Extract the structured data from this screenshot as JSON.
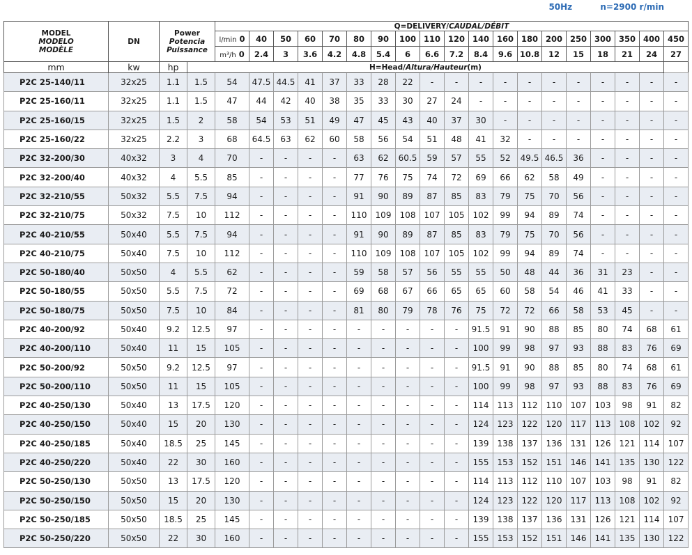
{
  "header": {
    "frequency": "50Hz",
    "speed": "n=2900 r/min"
  },
  "table": {
    "model_header": [
      "MODEL",
      "MODELO",
      "MODÈLE"
    ],
    "dn_header": "DN",
    "power_header": [
      "Power",
      "Potencia",
      "Puissance"
    ],
    "delivery_label": [
      "Q=DELIVERY/",
      "CAUDAL/DÉBIT"
    ],
    "lmin_label": "l/min",
    "lmin_zero": "0",
    "m3h_label": "m³/h",
    "m3h_zero": "0",
    "flow_lmin": [
      40,
      50,
      60,
      70,
      80,
      90,
      100,
      110,
      120,
      140,
      160,
      180,
      200,
      250,
      300,
      350,
      400,
      450
    ],
    "flow_m3h": [
      2.4,
      3,
      3.6,
      4.2,
      4.8,
      5.4,
      6,
      6.6,
      7.2,
      8.4,
      9.6,
      10.8,
      12,
      15,
      18,
      21,
      24,
      27
    ],
    "units": [
      "mm",
      "kw",
      "hp"
    ],
    "head_label": [
      "H=Head/",
      "Altura/Hauteur",
      "(m)"
    ],
    "groups": [
      [
        [
          "P2C 25-140/11",
          "32x25",
          1.1,
          1.5,
          54,
          47.5,
          44.5,
          41,
          37,
          33,
          28,
          22,
          "-",
          "-",
          "-",
          "-",
          "-",
          "-",
          "-",
          "-",
          "-",
          "-",
          "-"
        ],
        [
          "P2C 25-160/11",
          "32x25",
          1.1,
          1.5,
          47,
          44,
          42,
          40,
          38,
          35,
          33,
          30,
          27,
          24,
          "-",
          "-",
          "-",
          "-",
          "-",
          "-",
          "-",
          "-",
          "-"
        ],
        [
          "P2C 25-160/15",
          "32x25",
          1.5,
          2,
          58,
          54,
          53,
          51,
          49,
          47,
          45,
          43,
          40,
          37,
          30,
          "-",
          "-",
          "-",
          "-",
          "-",
          "-",
          "-",
          "-"
        ],
        [
          "P2C 25-160/22",
          "32x25",
          2.2,
          3,
          68,
          64.5,
          63,
          62,
          60,
          58,
          56,
          54,
          51,
          48,
          41,
          32,
          "-",
          "-",
          "-",
          "-",
          "-",
          "-",
          "-"
        ]
      ],
      [
        [
          "P2C 32-200/30",
          "40x32",
          3,
          4,
          70,
          "-",
          "-",
          "-",
          "-",
          63,
          62,
          60.5,
          59,
          57,
          55,
          52,
          49.5,
          46.5,
          36,
          "-",
          "-",
          "-",
          "-"
        ],
        [
          "P2C 32-200/40",
          "40x32",
          4,
          5.5,
          85,
          "-",
          "-",
          "-",
          "-",
          77,
          76,
          75,
          74,
          72,
          69,
          66,
          62,
          58,
          49,
          "-",
          "-",
          "-",
          "-"
        ],
        [
          "P2C 32-210/55",
          "50x32",
          5.5,
          7.5,
          94,
          "-",
          "-",
          "-",
          "-",
          91,
          90,
          89,
          87,
          85,
          83,
          79,
          75,
          70,
          56,
          "-",
          "-",
          "-",
          "-"
        ],
        [
          "P2C 32-210/75",
          "50x32",
          7.5,
          10,
          112,
          "-",
          "-",
          "-",
          "-",
          110,
          109,
          108,
          107,
          105,
          102,
          99,
          94,
          89,
          74,
          "-",
          "-",
          "-",
          "-"
        ]
      ],
      [
        [
          "P2C 40-210/55",
          "50x40",
          5.5,
          7.5,
          94,
          "-",
          "-",
          "-",
          "-",
          91,
          90,
          89,
          87,
          85,
          83,
          79,
          75,
          70,
          56,
          "-",
          "-",
          "-",
          "-"
        ],
        [
          "P2C 40-210/75",
          "50x40",
          7.5,
          10,
          112,
          "-",
          "-",
          "-",
          "-",
          110,
          109,
          108,
          107,
          105,
          102,
          99,
          94,
          89,
          74,
          "-",
          "-",
          "-",
          "-"
        ]
      ],
      [
        [
          "P2C 50-180/40",
          "50x50",
          4,
          5.5,
          62,
          "-",
          "-",
          "-",
          "-",
          59,
          58,
          57,
          56,
          55,
          55,
          50,
          48,
          44,
          36,
          31,
          23,
          "-",
          "-"
        ],
        [
          "P2C 50-180/55",
          "50x50",
          5.5,
          7.5,
          72,
          "-",
          "-",
          "-",
          "-",
          69,
          68,
          67,
          66,
          65,
          65,
          60,
          58,
          54,
          46,
          41,
          33,
          "-",
          "-"
        ],
        [
          "P2C 50-180/75",
          "50x50",
          7.5,
          10,
          84,
          "-",
          "-",
          "-",
          "-",
          81,
          80,
          79,
          78,
          76,
          75,
          72,
          72,
          66,
          58,
          53,
          45,
          "-",
          "-"
        ]
      ],
      [
        [
          "P2C 40-200/92",
          "50x40",
          9.2,
          12.5,
          97,
          "-",
          "-",
          "-",
          "-",
          "-",
          "-",
          "-",
          "-",
          "-",
          91.5,
          91,
          90,
          88,
          85,
          80,
          74,
          68,
          61
        ],
        [
          "P2C 40-200/110",
          "50x40",
          11,
          15,
          105,
          "-",
          "-",
          "-",
          "-",
          "-",
          "-",
          "-",
          "-",
          "-",
          100,
          99,
          98,
          97,
          93,
          88,
          83,
          76,
          69
        ]
      ],
      [
        [
          "P2C 50-200/92",
          "50x50",
          9.2,
          12.5,
          97,
          "-",
          "-",
          "-",
          "-",
          "-",
          "-",
          "-",
          "-",
          "-",
          91.5,
          91,
          90,
          88,
          85,
          80,
          74,
          68,
          61
        ],
        [
          "P2C 50-200/110",
          "50x50",
          11,
          15,
          105,
          "-",
          "-",
          "-",
          "-",
          "-",
          "-",
          "-",
          "-",
          "-",
          100,
          99,
          98,
          97,
          93,
          88,
          83,
          76,
          69
        ]
      ],
      [
        [
          "P2C 40-250/130",
          "50x40",
          13,
          17.5,
          120,
          "-",
          "-",
          "-",
          "-",
          "-",
          "-",
          "-",
          "-",
          "-",
          114,
          113,
          112,
          110,
          107,
          103,
          98,
          91,
          82
        ],
        [
          "P2C 40-250/150",
          "50x40",
          15,
          20,
          130,
          "-",
          "-",
          "-",
          "-",
          "-",
          "-",
          "-",
          "-",
          "-",
          124,
          123,
          122,
          120,
          117,
          113,
          108,
          102,
          92
        ],
        [
          "P2C 40-250/185",
          "50x40",
          18.5,
          25,
          145,
          "-",
          "-",
          "-",
          "-",
          "-",
          "-",
          "-",
          "-",
          "-",
          139,
          138,
          137,
          136,
          131,
          126,
          121,
          114,
          107
        ],
        [
          "P2C 40-250/220",
          "50x40",
          22,
          30,
          160,
          "-",
          "-",
          "-",
          "-",
          "-",
          "-",
          "-",
          "-",
          "-",
          155,
          153,
          152,
          151,
          146,
          141,
          135,
          130,
          122
        ]
      ],
      [
        [
          "P2C 50-250/130",
          "50x50",
          13,
          17.5,
          120,
          "-",
          "-",
          "-",
          "-",
          "-",
          "-",
          "-",
          "-",
          "-",
          114,
          113,
          112,
          110,
          107,
          103,
          98,
          91,
          82
        ],
        [
          "P2C 50-250/150",
          "50x50",
          15,
          20,
          130,
          "-",
          "-",
          "-",
          "-",
          "-",
          "-",
          "-",
          "-",
          "-",
          124,
          123,
          122,
          120,
          117,
          113,
          108,
          102,
          92
        ],
        [
          "P2C 50-250/185",
          "50x50",
          18.5,
          25,
          145,
          "-",
          "-",
          "-",
          "-",
          "-",
          "-",
          "-",
          "-",
          "-",
          139,
          138,
          137,
          136,
          131,
          126,
          121,
          114,
          107
        ],
        [
          "P2C 50-250/220",
          "50x50",
          22,
          30,
          160,
          "-",
          "-",
          "-",
          "-",
          "-",
          "-",
          "-",
          "-",
          "-",
          155,
          153,
          152,
          151,
          146,
          141,
          135,
          130,
          122
        ]
      ]
    ]
  }
}
